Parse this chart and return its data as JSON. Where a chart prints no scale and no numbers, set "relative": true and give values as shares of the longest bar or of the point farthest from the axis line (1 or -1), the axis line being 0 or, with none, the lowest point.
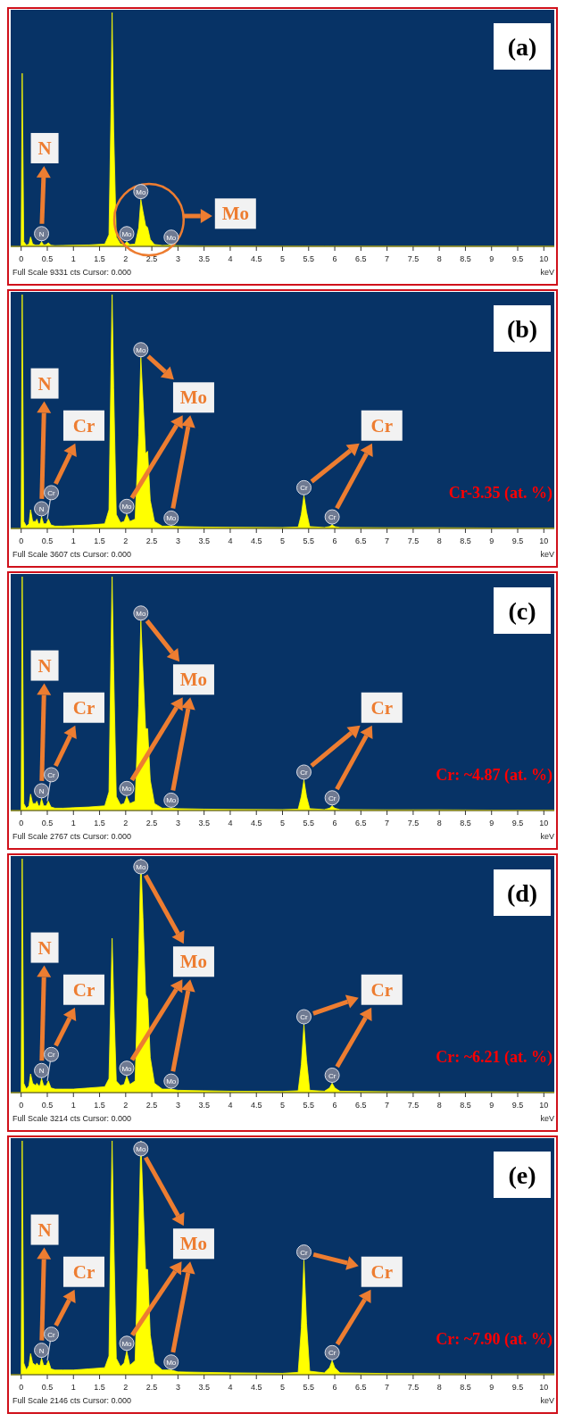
{
  "chart_data": [
    {
      "type": "area",
      "color": "#ffff00",
      "relative": true,
      "xlabel": "keV",
      "xlim": [
        -0.2,
        10.2
      ],
      "xticks": [
        0,
        0.5,
        1,
        1.5,
        2,
        2.5,
        3,
        3.5,
        4,
        4.5,
        5,
        5.5,
        6,
        6.5,
        7,
        7.5,
        8,
        8.5,
        9,
        9.5,
        10
      ],
      "x": [
        -0.2,
        0,
        0.02,
        0.05,
        0.1,
        0.15,
        0.18,
        0.22,
        0.28,
        0.3,
        0.33,
        0.36,
        0.39,
        0.43,
        0.48,
        0.52,
        0.57,
        0.65,
        0.8,
        1.0,
        1.3,
        1.6,
        1.68,
        1.72,
        1.74,
        1.77,
        1.82,
        1.9,
        1.97,
        2.02,
        2.08,
        2.18,
        2.25,
        2.29,
        2.33,
        2.38,
        2.42,
        2.47,
        2.55,
        2.7,
        2.87,
        3.0,
        3.5,
        4.0,
        5.0,
        5.3,
        5.36,
        5.41,
        5.46,
        5.52,
        5.8,
        5.9,
        5.95,
        6.0,
        6.1,
        7,
        8,
        9,
        10,
        10.2
      ],
      "values": [
        0,
        0,
        0.74,
        0.02,
        0.005,
        0.01,
        0.04,
        0.01,
        0.005,
        0.006,
        0.005,
        0.008,
        0.02,
        0.006,
        0.008,
        0.015,
        0.005,
        0.003,
        0.004,
        0.005,
        0.006,
        0.01,
        0.05,
        0.6,
        1,
        0.5,
        0.04,
        0.01,
        0.008,
        0.02,
        0.008,
        0.01,
        0.08,
        0.2,
        0.15,
        0.09,
        0.08,
        0.03,
        0.008,
        0.004,
        0.005,
        0.003,
        0.002,
        0.002,
        0.001,
        0.001,
        0.001,
        0.001,
        0.001,
        0.001,
        0.001,
        0.001,
        0.001,
        0.001,
        0.001,
        0.001,
        0.001,
        0.001,
        0.001,
        0.001
      ],
      "annotations": [
        "(a)",
        "N",
        "Mo",
        "Full Scale 9331 cts Cursor: 0.000",
        {
          "text": "N",
          "x": 0.39,
          "y": 0.02
        },
        {
          "text": "Mo",
          "x": 2.02,
          "y": 0.02
        },
        {
          "text": "Mo",
          "x": 2.29,
          "y": 0.2
        },
        {
          "text": "Mo",
          "x": 2.87,
          "y": 0.005
        }
      ]
    },
    {
      "type": "area",
      "color": "#ffff00",
      "relative": true,
      "xlabel": "keV",
      "xlim": [
        -0.2,
        10.2
      ],
      "xticks": [
        0,
        0.5,
        1,
        1.5,
        2,
        2.5,
        3,
        3.5,
        4,
        4.5,
        5,
        5.5,
        6,
        6.5,
        7,
        7.5,
        8,
        8.5,
        9,
        9.5,
        10
      ],
      "x": [
        -0.2,
        0,
        0.02,
        0.05,
        0.1,
        0.15,
        0.18,
        0.22,
        0.28,
        0.3,
        0.33,
        0.36,
        0.39,
        0.43,
        0.48,
        0.52,
        0.57,
        0.65,
        0.8,
        1.0,
        1.3,
        1.6,
        1.68,
        1.72,
        1.74,
        1.77,
        1.82,
        1.9,
        1.97,
        2.02,
        2.08,
        2.18,
        2.25,
        2.29,
        2.33,
        2.38,
        2.42,
        2.47,
        2.55,
        2.7,
        2.87,
        3.0,
        3.5,
        4.0,
        5.0,
        5.3,
        5.36,
        5.41,
        5.46,
        5.52,
        5.8,
        5.9,
        5.95,
        6.0,
        6.1,
        7,
        8,
        9,
        10,
        10.2
      ],
      "values": [
        0,
        0,
        1,
        0.03,
        0.01,
        0.02,
        0.08,
        0.03,
        0.03,
        0.04,
        0.02,
        0.02,
        0.05,
        0.02,
        0.02,
        0.04,
        0.015,
        0.01,
        0.01,
        0.012,
        0.015,
        0.02,
        0.08,
        0.7,
        1,
        0.6,
        0.06,
        0.025,
        0.03,
        0.06,
        0.03,
        0.04,
        0.4,
        0.73,
        0.55,
        0.32,
        0.33,
        0.12,
        0.03,
        0.01,
        0.01,
        0.008,
        0.006,
        0.005,
        0.004,
        0.006,
        0.06,
        0.14,
        0.07,
        0.008,
        0.004,
        0.008,
        0.015,
        0.008,
        0.004,
        0.003,
        0.003,
        0.002,
        0.002,
        0.002
      ],
      "annotations": [
        "(b)",
        "N",
        "Cr",
        "Mo",
        "Cr",
        "Cr-3.35 (at. %)",
        "Full Scale 3607 cts Cursor: 0.000",
        {
          "text": "N",
          "x": 0.39,
          "y": 0.05
        },
        {
          "text": "Cr",
          "x": 0.5,
          "y": 0.04
        },
        {
          "text": "Mo",
          "x": 2.02,
          "y": 0.06
        },
        {
          "text": "Mo",
          "x": 2.29,
          "y": 0.73
        },
        {
          "text": "Mo",
          "x": 2.87,
          "y": 0.01
        },
        {
          "text": "Cr",
          "x": 5.41,
          "y": 0.14
        },
        {
          "text": "Cr",
          "x": 5.95,
          "y": 0.015
        }
      ]
    },
    {
      "type": "area",
      "color": "#ffff00",
      "relative": true,
      "xlabel": "keV",
      "xlim": [
        -0.2,
        10.2
      ],
      "xticks": [
        0,
        0.5,
        1,
        1.5,
        2,
        2.5,
        3,
        3.5,
        4,
        4.5,
        5,
        5.5,
        6,
        6.5,
        7,
        7.5,
        8,
        8.5,
        9,
        9.5,
        10
      ],
      "x": [
        -0.2,
        0,
        0.02,
        0.05,
        0.1,
        0.15,
        0.18,
        0.22,
        0.28,
        0.3,
        0.33,
        0.36,
        0.39,
        0.43,
        0.48,
        0.52,
        0.57,
        0.65,
        0.8,
        1.0,
        1.3,
        1.6,
        1.68,
        1.72,
        1.74,
        1.77,
        1.82,
        1.9,
        1.97,
        2.02,
        2.08,
        2.18,
        2.25,
        2.29,
        2.33,
        2.38,
        2.42,
        2.47,
        2.55,
        2.7,
        2.87,
        3.0,
        3.5,
        4.0,
        5.0,
        5.3,
        5.36,
        5.41,
        5.46,
        5.52,
        5.8,
        5.9,
        5.95,
        6.0,
        6.1,
        7,
        8,
        9,
        10,
        10.2
      ],
      "values": [
        0,
        0,
        1,
        0.03,
        0.01,
        0.02,
        0.07,
        0.03,
        0.03,
        0.04,
        0.02,
        0.02,
        0.05,
        0.02,
        0.02,
        0.04,
        0.015,
        0.01,
        0.01,
        0.012,
        0.015,
        0.02,
        0.08,
        0.7,
        1,
        0.6,
        0.06,
        0.025,
        0.03,
        0.06,
        0.03,
        0.04,
        0.45,
        0.81,
        0.6,
        0.35,
        0.35,
        0.13,
        0.03,
        0.01,
        0.01,
        0.008,
        0.006,
        0.005,
        0.004,
        0.006,
        0.06,
        0.13,
        0.06,
        0.008,
        0.004,
        0.01,
        0.02,
        0.01,
        0.004,
        0.003,
        0.003,
        0.002,
        0.002,
        0.002
      ],
      "annotations": [
        "(c)",
        "N",
        "Cr",
        "Mo",
        "Cr",
        "Cr: ~4.87 (at. %)",
        "Full Scale 2767 cts Cursor: 0.000",
        {
          "text": "N",
          "x": 0.39,
          "y": 0.05
        },
        {
          "text": "Cr",
          "x": 0.5,
          "y": 0.04
        },
        {
          "text": "Mo",
          "x": 2.02,
          "y": 0.06
        },
        {
          "text": "Mo",
          "x": 2.29,
          "y": 0.81
        },
        {
          "text": "Mo",
          "x": 2.87,
          "y": 0.01
        },
        {
          "text": "Cr",
          "x": 5.41,
          "y": 0.13
        },
        {
          "text": "Cr",
          "x": 5.95,
          "y": 0.02
        }
      ]
    },
    {
      "type": "area",
      "color": "#ffff00",
      "relative": true,
      "xlabel": "keV",
      "xlim": [
        -0.2,
        10.2
      ],
      "xticks": [
        0,
        0.5,
        1,
        1.5,
        2,
        2.5,
        3,
        3.5,
        4,
        4.5,
        5,
        5.5,
        6,
        6.5,
        7,
        7.5,
        8,
        8.5,
        9,
        9.5,
        10
      ],
      "x": [
        -0.2,
        0,
        0.02,
        0.05,
        0.1,
        0.15,
        0.18,
        0.22,
        0.28,
        0.3,
        0.33,
        0.36,
        0.39,
        0.43,
        0.48,
        0.52,
        0.57,
        0.65,
        0.8,
        1.0,
        1.3,
        1.6,
        1.68,
        1.72,
        1.74,
        1.77,
        1.82,
        1.9,
        1.97,
        2.02,
        2.08,
        2.18,
        2.25,
        2.29,
        2.33,
        2.38,
        2.42,
        2.47,
        2.55,
        2.7,
        2.87,
        3.0,
        3.5,
        4.0,
        5.0,
        5.3,
        5.36,
        5.41,
        5.46,
        5.52,
        5.8,
        5.9,
        5.95,
        6.0,
        6.1,
        7,
        8,
        9,
        10,
        10.2
      ],
      "values": [
        0,
        0,
        1,
        0.04,
        0.015,
        0.03,
        0.08,
        0.04,
        0.03,
        0.04,
        0.03,
        0.03,
        0.06,
        0.03,
        0.03,
        0.05,
        0.02,
        0.015,
        0.015,
        0.015,
        0.02,
        0.025,
        0.06,
        0.45,
        0.66,
        0.4,
        0.05,
        0.03,
        0.035,
        0.07,
        0.035,
        0.05,
        0.6,
        1,
        0.75,
        0.42,
        0.4,
        0.15,
        0.04,
        0.015,
        0.015,
        0.01,
        0.008,
        0.006,
        0.005,
        0.008,
        0.12,
        0.29,
        0.14,
        0.01,
        0.006,
        0.02,
        0.04,
        0.02,
        0.006,
        0.004,
        0.003,
        0.003,
        0.002,
        0.002
      ],
      "annotations": [
        "(d)",
        "N",
        "Cr",
        "Mo",
        "Cr",
        "Cr: ~6.21 (at. %)",
        "Full Scale 3214 cts Cursor: 0.000",
        {
          "text": "N",
          "x": 0.39,
          "y": 0.06
        },
        {
          "text": "Cr",
          "x": 0.5,
          "y": 0.05
        },
        {
          "text": "Mo",
          "x": 2.02,
          "y": 0.07
        },
        {
          "text": "Mo",
          "x": 2.29,
          "y": 1
        },
        {
          "text": "Mo",
          "x": 2.87,
          "y": 0.015
        },
        {
          "text": "Cr",
          "x": 5.41,
          "y": 0.29
        },
        {
          "text": "Cr",
          "x": 5.95,
          "y": 0.04
        }
      ]
    },
    {
      "type": "area",
      "color": "#ffff00",
      "relative": true,
      "xlabel": "keV",
      "xlim": [
        -0.2,
        10.2
      ],
      "xticks": [
        0,
        0.5,
        1,
        1.5,
        2,
        2.5,
        3,
        3.5,
        4,
        4.5,
        5,
        5.5,
        6,
        6.5,
        7,
        7.5,
        8,
        8.5,
        9,
        9.5,
        10
      ],
      "x": [
        -0.2,
        0,
        0.02,
        0.05,
        0.1,
        0.15,
        0.18,
        0.22,
        0.28,
        0.3,
        0.33,
        0.36,
        0.39,
        0.43,
        0.48,
        0.52,
        0.57,
        0.65,
        0.8,
        1.0,
        1.3,
        1.6,
        1.68,
        1.72,
        1.74,
        1.77,
        1.82,
        1.9,
        1.97,
        2.02,
        2.08,
        2.18,
        2.25,
        2.29,
        2.33,
        2.38,
        2.42,
        2.47,
        2.55,
        2.7,
        2.87,
        3.0,
        3.5,
        4.0,
        5.0,
        5.3,
        5.36,
        5.41,
        5.46,
        5.52,
        5.8,
        5.9,
        5.95,
        6.0,
        6.1,
        7,
        8,
        9,
        10,
        10.2
      ],
      "values": [
        0,
        0,
        1,
        0.05,
        0.02,
        0.04,
        0.09,
        0.05,
        0.04,
        0.05,
        0.04,
        0.04,
        0.07,
        0.04,
        0.04,
        0.06,
        0.025,
        0.02,
        0.02,
        0.02,
        0.025,
        0.03,
        0.08,
        0.7,
        1,
        0.6,
        0.07,
        0.035,
        0.05,
        0.1,
        0.04,
        0.06,
        0.6,
        1,
        0.75,
        0.45,
        0.45,
        0.17,
        0.05,
        0.02,
        0.02,
        0.012,
        0.01,
        0.008,
        0.006,
        0.01,
        0.2,
        0.49,
        0.22,
        0.015,
        0.008,
        0.03,
        0.06,
        0.03,
        0.008,
        0.005,
        0.004,
        0.003,
        0.003,
        0.003
      ],
      "annotations": [
        "(e)",
        "N",
        "Cr",
        "Mo",
        "Cr",
        "Cr: ~7.90 (at. %)",
        "Full Scale 2146 cts Cursor: 0.000",
        {
          "text": "N",
          "x": 0.39,
          "y": 0.07
        },
        {
          "text": "Cr",
          "x": 0.5,
          "y": 0.06
        },
        {
          "text": "Mo",
          "x": 2.02,
          "y": 0.1
        },
        {
          "text": "Mo",
          "x": 2.29,
          "y": 1
        },
        {
          "text": "Mo",
          "x": 2.87,
          "y": 0.02
        },
        {
          "text": "Cr",
          "x": 5.41,
          "y": 0.49
        },
        {
          "text": "Cr",
          "x": 5.95,
          "y": 0.06
        }
      ]
    }
  ]
}
